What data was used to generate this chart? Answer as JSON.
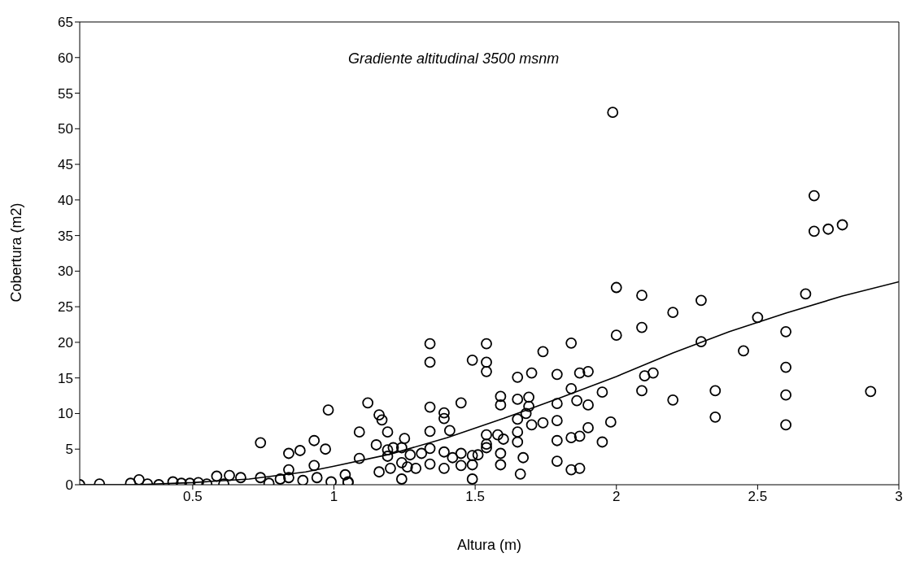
{
  "chart_data": {
    "type": "scatter",
    "xlabel": "Altura (m)",
    "ylabel": "Cobertura (m2)",
    "annotations": [
      "Gradiente altitudinal 3500 msnm"
    ],
    "xlim": [
      0.1,
      3
    ],
    "xticks": [
      0.5,
      1,
      1.5,
      2,
      2.5,
      3
    ],
    "ylim": [
      0,
      65
    ],
    "yticks": [
      0,
      5,
      10,
      15,
      20,
      25,
      30,
      35,
      40,
      45,
      50,
      55,
      60,
      65
    ],
    "grid": false,
    "series": [
      {
        "marker": "circle",
        "color": "#000000",
        "x": [
          0.1,
          0.17,
          0.28,
          0.31,
          0.34,
          0.38,
          0.43,
          0.46,
          0.49,
          0.52,
          0.55,
          0.585,
          0.61,
          0.63,
          0.67,
          0.74,
          0.74,
          0.77,
          0.81,
          0.84,
          0.84,
          0.84,
          0.88,
          0.89,
          0.93,
          0.93,
          0.94,
          0.97,
          0.98,
          0.99,
          1.04,
          1.05,
          1.05,
          1.09,
          1.09,
          1.12,
          1.15,
          1.16,
          1.16,
          1.17,
          1.19,
          1.19,
          1.19,
          1.2,
          1.21,
          1.24,
          1.24,
          1.24,
          1.25,
          1.26,
          1.27,
          1.29,
          1.31,
          1.34,
          1.34,
          1.34,
          1.34,
          1.34,
          1.34,
          1.39,
          1.39,
          1.39,
          1.39,
          1.41,
          1.42,
          1.45,
          1.45,
          1.45,
          1.49,
          1.49,
          1.49,
          1.49,
          1.51,
          1.54,
          1.54,
          1.54,
          1.54,
          1.54,
          1.54,
          1.58,
          1.59,
          1.59,
          1.59,
          1.59,
          1.6,
          1.65,
          1.65,
          1.65,
          1.65,
          1.65,
          1.66,
          1.67,
          1.68,
          1.69,
          1.69,
          1.7,
          1.7,
          1.74,
          1.74,
          1.79,
          1.79,
          1.79,
          1.79,
          1.79,
          1.84,
          1.84,
          1.84,
          1.84,
          1.86,
          1.87,
          1.87,
          1.87,
          1.9,
          1.9,
          1.9,
          1.95,
          1.95,
          1.98,
          1.987,
          2.0,
          2.0,
          2.09,
          2.09,
          2.09,
          2.1,
          2.13,
          2.2,
          2.2,
          2.3,
          2.3,
          2.35,
          2.35,
          2.45,
          2.5,
          2.6,
          2.6,
          2.6,
          2.6,
          2.67,
          2.7,
          2.7,
          2.75,
          2.8,
          2.9
        ],
        "values": [
          0,
          0.1,
          0.2,
          0.7,
          0.1,
          0,
          0.4,
          0.2,
          0.2,
          0.3,
          0.1,
          1.2,
          0.1,
          1.3,
          1,
          5.9,
          1,
          0.2,
          0.8,
          4.4,
          2.1,
          1,
          4.8,
          0.6,
          6.2,
          2.7,
          1,
          5,
          10.5,
          0.4,
          1.4,
          0.4,
          0.3,
          7.4,
          3.7,
          11.5,
          5.6,
          9.8,
          1.8,
          9.1,
          7.4,
          4.9,
          4,
          2.3,
          5.2,
          5.2,
          3.1,
          0.8,
          6.5,
          2.5,
          4.2,
          2.3,
          4.4,
          19.8,
          17.2,
          10.9,
          7.5,
          5.1,
          2.9,
          10.1,
          9.3,
          4.6,
          2.3,
          7.6,
          3.8,
          11.5,
          4.4,
          2.7,
          17.5,
          4.1,
          2.8,
          0.8,
          4.2,
          19.8,
          17.2,
          15.9,
          7,
          5.7,
          5.2,
          7,
          12.4,
          11.2,
          4.4,
          2.8,
          6.4,
          15.1,
          12,
          9.2,
          7.4,
          6,
          1.5,
          3.8,
          10,
          12.3,
          11,
          15.7,
          8.4,
          18.7,
          8.7,
          15.5,
          11.4,
          9,
          6.2,
          3.3,
          19.9,
          13.5,
          6.6,
          2.1,
          11.8,
          15.7,
          6.8,
          2.3,
          15.9,
          11.2,
          8,
          13,
          6,
          8.8,
          52.3,
          27.7,
          21,
          26.6,
          22.1,
          13.2,
          15.3,
          15.7,
          24.2,
          11.9,
          25.9,
          20.1,
          13.2,
          9.5,
          18.8,
          23.5,
          21.5,
          16.5,
          12.6,
          8.4,
          26.8,
          40.6,
          35.6,
          35.9,
          36.5,
          13.1
        ]
      },
      {
        "type": "line",
        "color": "#000000",
        "x": [
          0.1,
          0.3,
          0.5,
          0.7,
          0.9,
          1.0,
          1.2,
          1.4,
          1.6,
          1.8,
          2.0,
          2.2,
          2.4,
          2.6,
          2.8,
          3.0
        ],
        "values": [
          0,
          0,
          0.3,
          0.8,
          1.8,
          2.6,
          4.3,
          6.6,
          9.3,
          12.2,
          15.2,
          18.5,
          21.5,
          24.1,
          26.5,
          28.5
        ]
      }
    ]
  }
}
